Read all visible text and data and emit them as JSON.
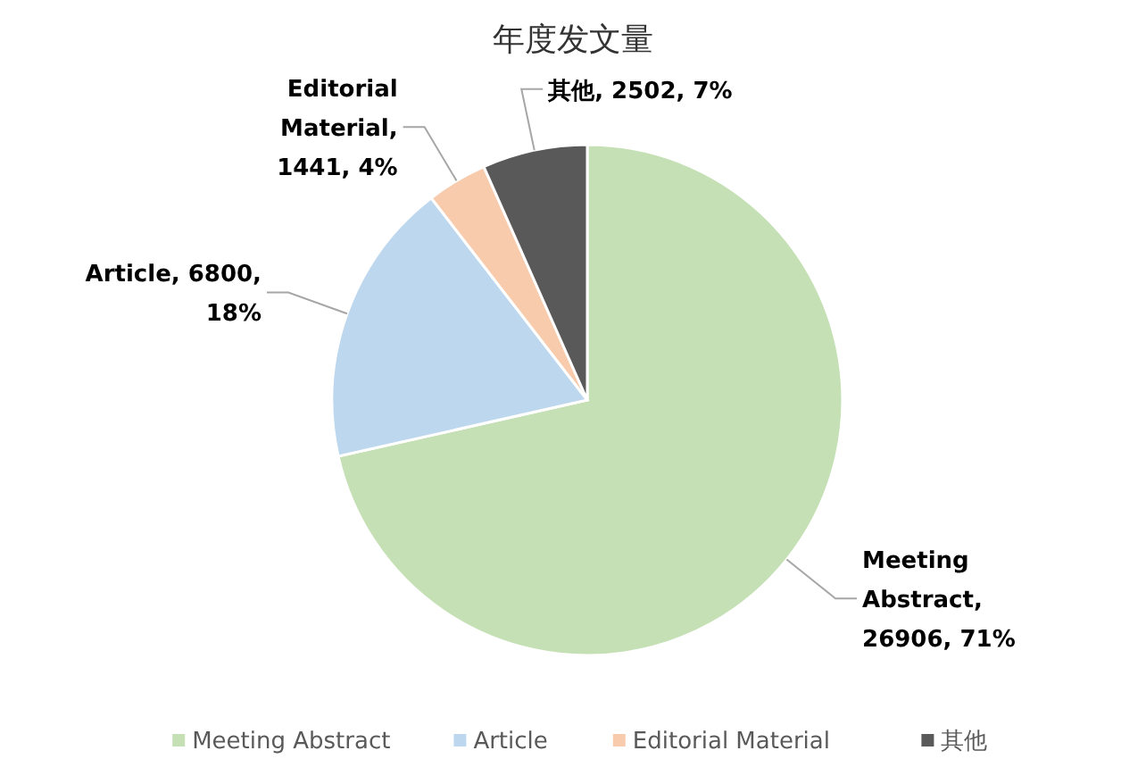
{
  "chart_data": {
    "type": "pie",
    "title": "年度发文量",
    "categories": [
      "Meeting Abstract",
      "Article",
      "Editorial Material",
      "其他"
    ],
    "values": [
      26906,
      6800,
      1441,
      2502
    ],
    "value_labels": [
      ", 26906, 71%",
      ", 6800, 18%",
      ", 1441, 4%",
      ", 2502, 7%"
    ],
    "colors": [
      "#c5e0b4",
      "#bdd7ee",
      "#f8cbad",
      "#595959"
    ],
    "legend": "bottom"
  }
}
